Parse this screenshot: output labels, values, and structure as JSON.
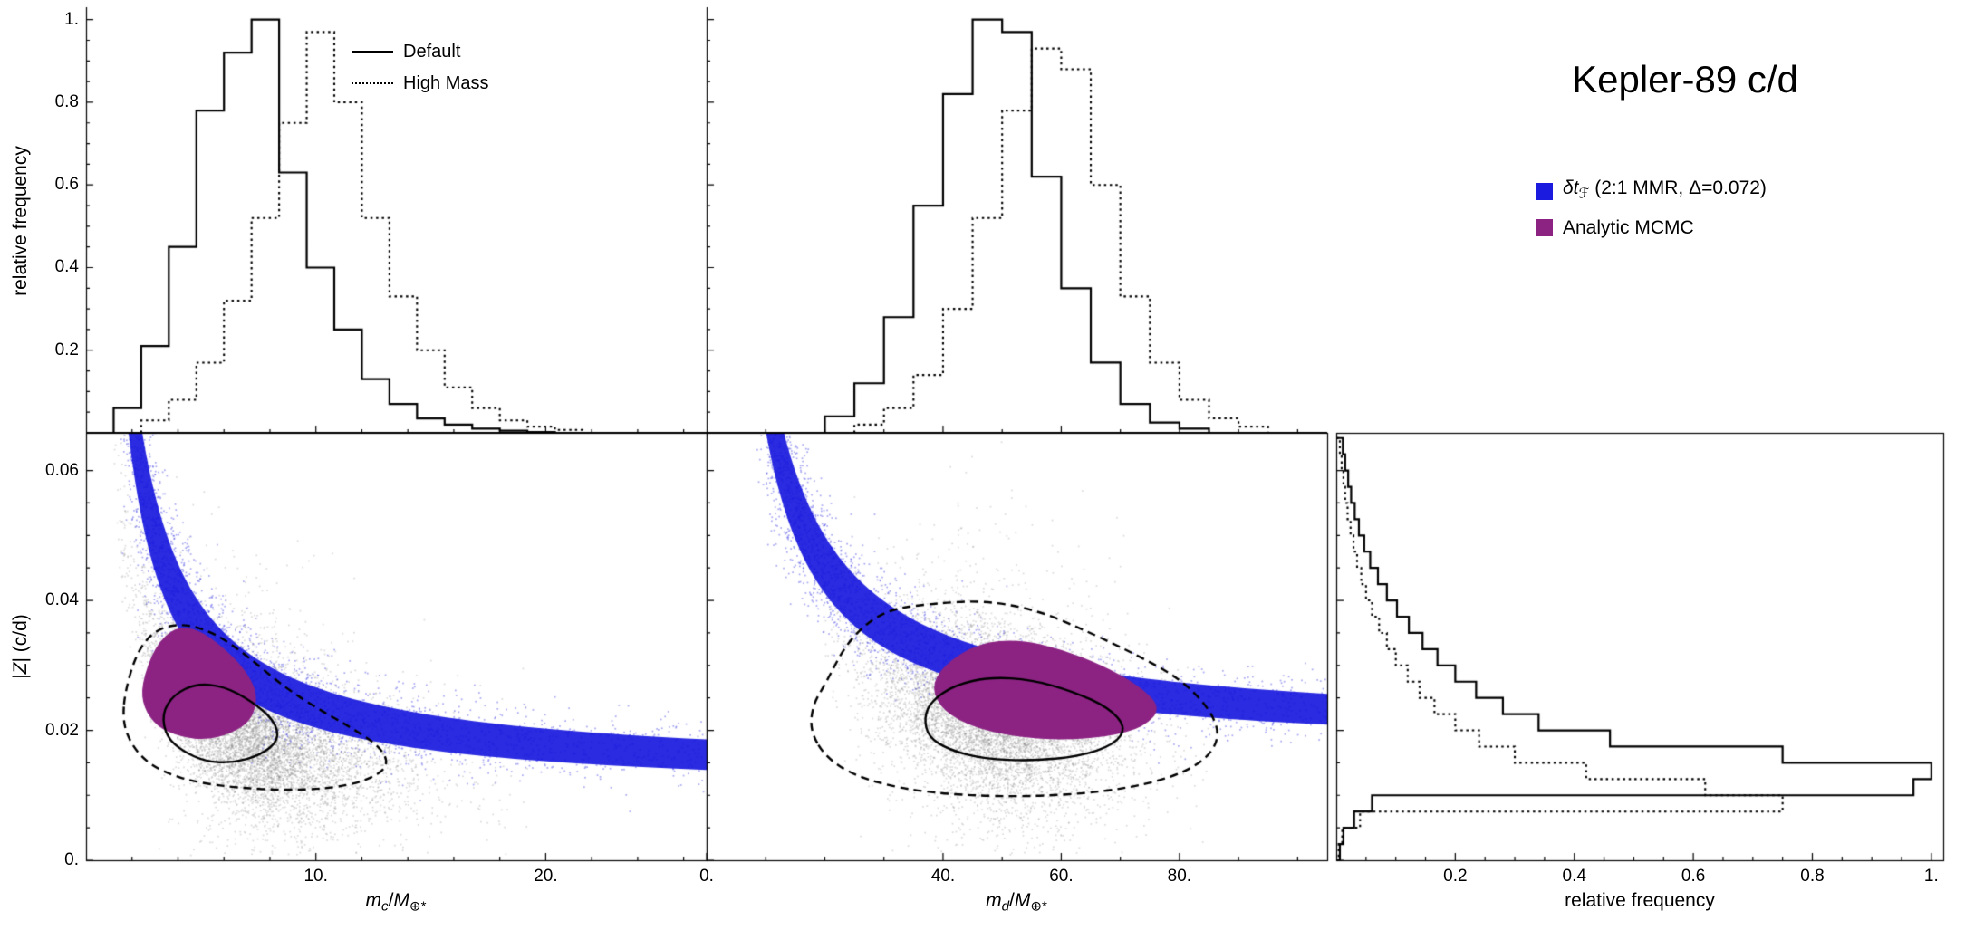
{
  "title": "Kepler-89 c/d",
  "colors": {
    "band_blue": "#1b1bdf",
    "mcmc_purple": "#8c2383",
    "scatter_gray": "#999999",
    "line_black": "#000000",
    "background": "#ffffff"
  },
  "axes": {
    "ylabel_top": "relative frequency",
    "ylabel_bottom_parts": [
      {
        "t": "|"
      },
      {
        "t": "Z",
        "italic": true
      },
      {
        "t": "| (c/d)"
      }
    ],
    "xlabel_left_parts": [
      {
        "t": "m",
        "italic": true
      },
      {
        "t": "c",
        "sub": true,
        "italic": true
      },
      {
        "t": "/"
      },
      {
        "t": "M",
        "italic": true
      },
      {
        "t": "⊕*",
        "sub": true
      }
    ],
    "xlabel_mid_parts": [
      {
        "t": "m",
        "italic": true
      },
      {
        "t": "d",
        "sub": true,
        "italic": true
      },
      {
        "t": "/"
      },
      {
        "t": "M",
        "italic": true
      },
      {
        "t": "⊕*",
        "sub": true
      }
    ],
    "xlabel_right": "relative frequency"
  },
  "legend_hist": {
    "items": [
      {
        "label": "Default",
        "line": "solid"
      },
      {
        "label": "High Mass",
        "line": "dotted"
      }
    ]
  },
  "legend_models": {
    "items": [
      {
        "color": "#1b1bdf",
        "parts": [
          {
            "t": "δt",
            "italic": true
          },
          {
            "t": "ℱ",
            "sub": true,
            "italic": true
          },
          {
            "t": " (2:1 MMR, Δ=0.072)"
          }
        ]
      },
      {
        "color": "#8c2383",
        "parts": [
          {
            "t": "Analytic MCMC"
          }
        ]
      }
    ]
  },
  "chart_data": {
    "panels": [
      {
        "id": "mc_mass_histogram",
        "type": "step_histogram",
        "orient": "v",
        "xlim": [
          0,
          27
        ],
        "ylim": [
          0,
          1.03
        ],
        "xticks": [
          {
            "v": 10,
            "label": "10."
          },
          {
            "v": 20,
            "label": "20."
          }
        ],
        "xminor": 2,
        "yticks": [
          {
            "v": 0.2,
            "label": "0.2"
          },
          {
            "v": 0.4,
            "label": "0.4"
          },
          {
            "v": 0.6,
            "label": "0.6"
          },
          {
            "v": 0.8,
            "label": "0.8"
          },
          {
            "v": 1,
            "label": "1."
          }
        ],
        "yminor": 0.05,
        "show_xtick_labels": false,
        "show_ytick_labels": true,
        "series": [
          {
            "name": "Default",
            "style": "solid",
            "bin_start": 1.2,
            "bin_width": 1.2,
            "values": [
              0.06,
              0.21,
              0.45,
              0.78,
              0.92,
              1.0,
              0.63,
              0.4,
              0.25,
              0.13,
              0.07,
              0.035,
              0.02,
              0.01,
              0.005,
              0.002
            ]
          },
          {
            "name": "High Mass",
            "style": "dotted",
            "bin_start": 2.4,
            "bin_width": 1.2,
            "values": [
              0.03,
              0.08,
              0.17,
              0.32,
              0.52,
              0.75,
              0.97,
              0.8,
              0.52,
              0.33,
              0.2,
              0.11,
              0.06,
              0.03,
              0.015,
              0.007
            ]
          }
        ]
      },
      {
        "id": "md_mass_histogram",
        "type": "step_histogram",
        "orient": "v",
        "xlim": [
          0,
          105
        ],
        "ylim": [
          0,
          1.03
        ],
        "xticks": [
          {
            "v": 40,
            "label": "40."
          },
          {
            "v": 60,
            "label": "60."
          },
          {
            "v": 80,
            "label": "80."
          }
        ],
        "xminor": 10,
        "yticks": [
          {
            "v": 0.2,
            "label": "0.2"
          },
          {
            "v": 0.4,
            "label": "0.4"
          },
          {
            "v": 0.6,
            "label": "0.6"
          },
          {
            "v": 0.8,
            "label": "0.8"
          },
          {
            "v": 1,
            "label": "1."
          }
        ],
        "yminor": 0.05,
        "show_xtick_labels": false,
        "show_ytick_labels": false,
        "series": [
          {
            "name": "Default",
            "style": "solid",
            "bin_start": 20,
            "bin_width": 5,
            "values": [
              0.04,
              0.12,
              0.28,
              0.55,
              0.82,
              1.0,
              0.97,
              0.62,
              0.35,
              0.17,
              0.07,
              0.025,
              0.01
            ]
          },
          {
            "name": "High Mass",
            "style": "dotted",
            "bin_start": 25,
            "bin_width": 5,
            "values": [
              0.02,
              0.06,
              0.14,
              0.3,
              0.52,
              0.78,
              0.93,
              0.88,
              0.6,
              0.33,
              0.17,
              0.08,
              0.035,
              0.015
            ]
          }
        ]
      },
      {
        "id": "mc_z_scatter",
        "type": "scatter",
        "xlim": [
          0,
          27
        ],
        "ylim": [
          0,
          0.0658
        ],
        "xticks": [
          {
            "v": 10,
            "label": "10."
          },
          {
            "v": 20,
            "label": "20."
          }
        ],
        "xminor": 2,
        "yticks": [
          {
            "v": 0,
            "label": "0."
          },
          {
            "v": 0.02,
            "label": "0.02"
          },
          {
            "v": 0.04,
            "label": "0.04"
          },
          {
            "v": 0.06,
            "label": "0.06"
          }
        ],
        "yminor": 0.005,
        "show_xtick_labels": true,
        "show_ytick_labels": true,
        "band": {
          "z0": 0.012,
          "k": 0.115,
          "hw0": 0.0019,
          "hwk": 0.012,
          "m_min": 1.3
        },
        "cloud": {
          "z0": 0.01,
          "k": 0.065,
          "sigma": 0.0055,
          "n": 8000,
          "hist_ref": 0
        },
        "mcmc_region": [
          [
            2.4,
            0.027
          ],
          [
            3.0,
            0.033
          ],
          [
            3.9,
            0.036
          ],
          [
            4.9,
            0.0355
          ],
          [
            5.9,
            0.033
          ],
          [
            6.9,
            0.0295
          ],
          [
            7.5,
            0.0255
          ],
          [
            7.2,
            0.0215
          ],
          [
            6.3,
            0.0195
          ],
          [
            5.2,
            0.0185
          ],
          [
            4.1,
            0.019
          ],
          [
            3.1,
            0.0205
          ],
          [
            2.5,
            0.0235
          ]
        ],
        "contour_68": [
          [
            3.3,
            0.0225
          ],
          [
            3.8,
            0.0255
          ],
          [
            4.8,
            0.0272
          ],
          [
            6.0,
            0.0268
          ],
          [
            7.2,
            0.0245
          ],
          [
            8.2,
            0.0215
          ],
          [
            8.4,
            0.0185
          ],
          [
            7.6,
            0.0162
          ],
          [
            6.4,
            0.015
          ],
          [
            5.2,
            0.0152
          ],
          [
            4.2,
            0.0168
          ],
          [
            3.5,
            0.019
          ]
        ],
        "contour_95": [
          [
            1.7,
            0.026
          ],
          [
            2.2,
            0.032
          ],
          [
            3.0,
            0.0355
          ],
          [
            4.2,
            0.0365
          ],
          [
            5.6,
            0.035
          ],
          [
            7.0,
            0.0315
          ],
          [
            8.5,
            0.027
          ],
          [
            10.0,
            0.0235
          ],
          [
            11.5,
            0.0205
          ],
          [
            12.8,
            0.0175
          ],
          [
            13.2,
            0.0145
          ],
          [
            12.2,
            0.0122
          ],
          [
            10.5,
            0.011
          ],
          [
            8.5,
            0.0108
          ],
          [
            6.5,
            0.0112
          ],
          [
            4.8,
            0.012
          ],
          [
            3.4,
            0.0135
          ],
          [
            2.4,
            0.0158
          ],
          [
            1.8,
            0.019
          ],
          [
            1.6,
            0.022
          ]
        ]
      },
      {
        "id": "md_z_scatter",
        "type": "scatter",
        "xlim": [
          0,
          105
        ],
        "ylim": [
          0,
          0.0658
        ],
        "xticks": [
          {
            "v": 0,
            "label": "0."
          },
          {
            "v": 40,
            "label": "40."
          },
          {
            "v": 60,
            "label": "60."
          },
          {
            "v": 80,
            "label": "80."
          }
        ],
        "xminor": 10,
        "yticks": [
          {
            "v": 0,
            "label": "0."
          },
          {
            "v": 0.02,
            "label": "0.02"
          },
          {
            "v": 0.04,
            "label": "0.04"
          },
          {
            "v": 0.06,
            "label": "0.06"
          }
        ],
        "yminor": 0.005,
        "show_xtick_labels": true,
        "show_ytick_labels": false,
        "band": {
          "z0": 0.018,
          "k": 0.55,
          "hw0": 0.0019,
          "hwk": 0.05,
          "m_min": 8
        },
        "cloud": {
          "z0": 0.013,
          "k": 0.45,
          "sigma": 0.0062,
          "n": 8000,
          "hist_ref": 1
        },
        "mcmc_region": [
          [
            38,
            0.0265
          ],
          [
            40,
            0.03
          ],
          [
            46,
            0.0335
          ],
          [
            53,
            0.034
          ],
          [
            60,
            0.0325
          ],
          [
            67,
            0.03
          ],
          [
            73,
            0.027
          ],
          [
            77,
            0.0235
          ],
          [
            74,
            0.0205
          ],
          [
            68,
            0.019
          ],
          [
            60,
            0.0185
          ],
          [
            52,
            0.019
          ],
          [
            45,
            0.0205
          ],
          [
            40,
            0.023
          ]
        ],
        "contour_68": [
          [
            36.8,
            0.022
          ],
          [
            38,
            0.0245
          ],
          [
            42,
            0.027
          ],
          [
            48,
            0.0282
          ],
          [
            55,
            0.0278
          ],
          [
            62,
            0.026
          ],
          [
            68,
            0.0235
          ],
          [
            71,
            0.0205
          ],
          [
            69,
            0.0178
          ],
          [
            63,
            0.016
          ],
          [
            55,
            0.0153
          ],
          [
            47,
            0.0156
          ],
          [
            41,
            0.017
          ],
          [
            37.5,
            0.019
          ]
        ],
        "contour_95": [
          [
            17.5,
            0.02
          ],
          [
            18,
            0.024
          ],
          [
            20,
            0.027
          ],
          [
            24,
            0.034
          ],
          [
            30,
            0.0385
          ],
          [
            38,
            0.0395
          ],
          [
            47,
            0.04
          ],
          [
            56,
            0.0385
          ],
          [
            65,
            0.035
          ],
          [
            73,
            0.0315
          ],
          [
            80,
            0.028
          ],
          [
            85,
            0.0235
          ],
          [
            87,
            0.019
          ],
          [
            84,
            0.015
          ],
          [
            77,
            0.0122
          ],
          [
            67,
            0.0105
          ],
          [
            55,
            0.0098
          ],
          [
            43,
            0.01
          ],
          [
            33,
            0.011
          ],
          [
            25,
            0.013
          ],
          [
            20,
            0.016
          ]
        ]
      },
      {
        "id": "z_histogram",
        "type": "step_histogram",
        "orient": "h",
        "xlim": [
          0,
          1.02
        ],
        "ylim": [
          0,
          0.0658
        ],
        "xticks": [
          {
            "v": 0.2,
            "label": "0.2"
          },
          {
            "v": 0.4,
            "label": "0.4"
          },
          {
            "v": 0.6,
            "label": "0.6"
          },
          {
            "v": 0.8,
            "label": "0.8"
          },
          {
            "v": 1,
            "label": "1."
          }
        ],
        "xminor": 0.05,
        "yticks": [
          {
            "v": 0,
            "label": "0."
          },
          {
            "v": 0.02,
            "label": "0.02"
          },
          {
            "v": 0.04,
            "label": "0.04"
          },
          {
            "v": 0.06,
            "label": "0.06"
          }
        ],
        "yminor": 0.005,
        "show_xtick_labels": true,
        "show_ytick_labels": false,
        "series": [
          {
            "name": "Default",
            "style": "solid",
            "bin_start": 0,
            "bin_width": 0.0025,
            "values": [
              0.006,
              0.012,
              0.03,
              0.06,
              0.97,
              1.0,
              0.75,
              0.46,
              0.34,
              0.28,
              0.235,
              0.2,
              0.17,
              0.145,
              0.122,
              0.102,
              0.085,
              0.07,
              0.057,
              0.047,
              0.038,
              0.031,
              0.025,
              0.02,
              0.015,
              0.011
            ]
          },
          {
            "name": "High Mass",
            "style": "dotted",
            "bin_start": 0,
            "bin_width": 0.0025,
            "values": [
              0.004,
              0.01,
              0.04,
              0.75,
              0.62,
              0.42,
              0.3,
              0.24,
              0.2,
              0.165,
              0.14,
              0.12,
              0.1,
              0.085,
              0.072,
              0.06,
              0.05,
              0.042,
              0.035,
              0.029,
              0.024,
              0.019,
              0.015,
              0.012,
              0.009,
              0.006
            ]
          }
        ]
      }
    ]
  }
}
